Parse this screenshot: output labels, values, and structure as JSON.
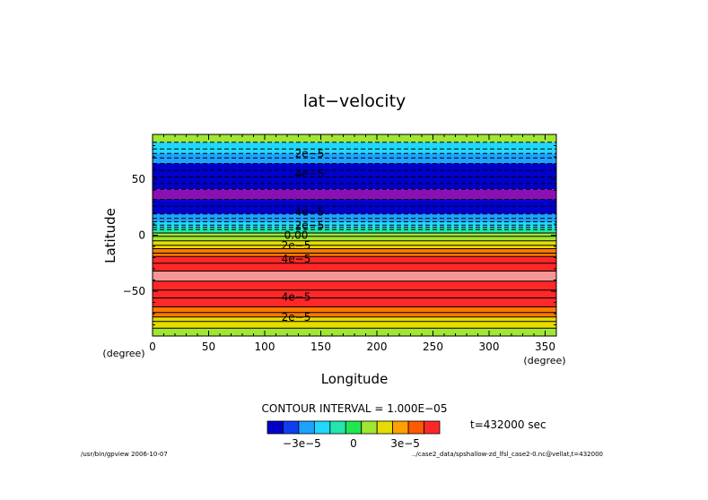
{
  "chart_data": {
    "type": "heatmap",
    "title": "lat−velocity",
    "xlabel": "Longitude",
    "ylabel": "Latitude",
    "x_unit_label": "(degree)",
    "y_unit_label": "(degree)",
    "xlim": [
      0,
      360
    ],
    "ylim": [
      -90,
      90
    ],
    "x_ticks": [
      0,
      50,
      100,
      150,
      200,
      250,
      300,
      350
    ],
    "y_ticks": [
      50,
      0,
      -50
    ],
    "y_tick_labels": [
      "50",
      "0",
      "−50"
    ],
    "bands": [
      {
        "lat_top": 90,
        "lat_bottom": 83,
        "level": 1
      },
      {
        "lat_top": 83,
        "lat_bottom": 73,
        "level": -1
      },
      {
        "lat_top": 73,
        "lat_bottom": 64,
        "level": -2
      },
      {
        "lat_top": 64,
        "lat_bottom": 41,
        "level": -4
      },
      {
        "lat_top": 41,
        "lat_bottom": 32,
        "level": -5
      },
      {
        "lat_top": 32,
        "lat_bottom": 19,
        "level": -4
      },
      {
        "lat_top": 19,
        "lat_bottom": 12,
        "level": -2
      },
      {
        "lat_top": 12,
        "lat_bottom": 7,
        "level": -1
      },
      {
        "lat_top": 7,
        "lat_bottom": 2,
        "level": 0
      },
      {
        "lat_top": 2,
        "lat_bottom": -5,
        "level": 1
      },
      {
        "lat_top": -5,
        "lat_bottom": -12,
        "level": 2
      },
      {
        "lat_top": -12,
        "lat_bottom": -19,
        "level": 3
      },
      {
        "lat_top": -19,
        "lat_bottom": -32,
        "level": 4
      },
      {
        "lat_top": -32,
        "lat_bottom": -41,
        "level": 5
      },
      {
        "lat_top": -41,
        "lat_bottom": -64,
        "level": 4
      },
      {
        "lat_top": -64,
        "lat_bottom": -73,
        "level": 3
      },
      {
        "lat_top": -73,
        "lat_bottom": -83,
        "level": 2
      },
      {
        "lat_top": -83,
        "lat_bottom": -90,
        "level": 1
      }
    ],
    "contour_lines": [
      {
        "lat": 83,
        "style": "dashed"
      },
      {
        "lat": 77,
        "style": "dashed"
      },
      {
        "lat": 73,
        "style": "dashed"
      },
      {
        "lat": 69,
        "style": "dashed"
      },
      {
        "lat": 64,
        "style": "dashed"
      },
      {
        "lat": 58,
        "style": "dashed"
      },
      {
        "lat": 52,
        "style": "dashed"
      },
      {
        "lat": 46,
        "style": "dashed"
      },
      {
        "lat": 41,
        "style": "dashed"
      },
      {
        "lat": 32,
        "style": "dashed"
      },
      {
        "lat": 26,
        "style": "dashed"
      },
      {
        "lat": 19,
        "style": "dashed"
      },
      {
        "lat": 15,
        "style": "dashed"
      },
      {
        "lat": 12,
        "style": "dashed"
      },
      {
        "lat": 9,
        "style": "dashed"
      },
      {
        "lat": 7,
        "style": "dashed"
      },
      {
        "lat": 5,
        "style": "dashed"
      },
      {
        "lat": 2,
        "style": "solid"
      },
      {
        "lat": -1,
        "style": "solid"
      },
      {
        "lat": -5,
        "style": "solid"
      },
      {
        "lat": -9,
        "style": "solid"
      },
      {
        "lat": -12,
        "style": "solid"
      },
      {
        "lat": -16,
        "style": "solid"
      },
      {
        "lat": -19,
        "style": "solid"
      },
      {
        "lat": -25,
        "style": "solid"
      },
      {
        "lat": -32,
        "style": "solid"
      },
      {
        "lat": -41,
        "style": "solid"
      },
      {
        "lat": -49,
        "style": "solid"
      },
      {
        "lat": -56,
        "style": "solid"
      },
      {
        "lat": -64,
        "style": "solid"
      },
      {
        "lat": -69,
        "style": "solid"
      },
      {
        "lat": -73,
        "style": "solid"
      },
      {
        "lat": -77,
        "style": "solid"
      },
      {
        "lat": -83,
        "style": "solid"
      }
    ],
    "contour_labels": [
      {
        "text": "2e−5",
        "lon": 140,
        "lat": 73
      },
      {
        "text": "4e−5",
        "lon": 140,
        "lat": 55
      },
      {
        "text": "4e−5",
        "lon": 140,
        "lat": 21
      },
      {
        "text": "2e−5",
        "lon": 140,
        "lat": 9
      },
      {
        "text": "0.00",
        "lon": 128,
        "lat": 0
      },
      {
        "text": "2e−5",
        "lon": 128,
        "lat": -9
      },
      {
        "text": "4e−5",
        "lon": 128,
        "lat": -21
      },
      {
        "text": "4e−5",
        "lon": 128,
        "lat": -55
      },
      {
        "text": "2e−5",
        "lon": 128,
        "lat": -73
      }
    ],
    "colorbar": {
      "levels": [
        -5,
        -4,
        -3,
        -2,
        -1,
        0,
        1,
        2,
        3,
        4,
        5
      ],
      "colors": [
        "#0000c8",
        "#0f3ef0",
        "#1ea2ff",
        "#20d8ff",
        "#22e6ae",
        "#22e650",
        "#a0e632",
        "#e6dc00",
        "#ffa000",
        "#ff5a00",
        "#ff2828"
      ],
      "tick_labels": [
        "−3e−5",
        "0",
        "3e−5"
      ]
    },
    "contour_interval_text": "CONTOUR INTERVAL = 1.000E−05",
    "time_text": "t=432000 sec"
  },
  "band_colors": {
    "-5": "#8c0fb4",
    "-4": "#0000c8",
    "-3": "#0f3ef0",
    "-2": "#1ea2ff",
    "-1": "#20d8ff",
    "0": "#22e6ae",
    "1": "#a0e632",
    "2": "#e6dc00",
    "3": "#ff7800",
    "4": "#ff2828",
    "5": "#f59696"
  },
  "footer": {
    "left": "/usr/bin/gpview  2006-10-07",
    "right": "../case2_data/spshallow-zd_lfsl_case2-0.nc@vellat,t=432000"
  }
}
